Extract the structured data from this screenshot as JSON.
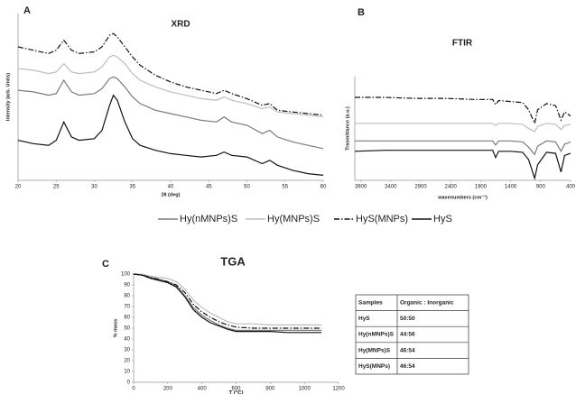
{
  "legend": [
    {
      "name": "Hy(nMNPs)S",
      "color": "#7a7a7a",
      "style": "solid"
    },
    {
      "name": "Hy(MNPs)S",
      "color": "#bdbdbd",
      "style": "solid"
    },
    {
      "name": "HyS(MNPs)",
      "color": "#111111",
      "style": "dashdot"
    },
    {
      "name": "HyS",
      "color": "#111111",
      "style": "solid"
    }
  ],
  "chart_data": [
    {
      "type": "line",
      "panel": "A",
      "title": "XRD",
      "xlabel": "2θ (deg)",
      "ylabel": "Intensity (arb. Units)",
      "x": [
        20,
        22,
        24,
        25,
        26,
        27,
        28,
        30,
        31,
        32,
        32.5,
        33,
        34,
        35,
        36,
        38,
        40,
        42,
        44,
        46,
        47,
        48,
        50,
        52,
        53,
        54,
        56,
        58,
        60
      ],
      "xlim": [
        20,
        60
      ],
      "xticks": [
        20,
        25,
        30,
        35,
        40,
        45,
        50,
        55,
        60
      ],
      "ylim": [
        0,
        100
      ],
      "series": [
        {
          "values": [
            54,
            53,
            51,
            52,
            60,
            53,
            51,
            52,
            55,
            61,
            62,
            61,
            56,
            50,
            46,
            42,
            40,
            38,
            36,
            35,
            38,
            35,
            33,
            28,
            30,
            26,
            23,
            21,
            19
          ]
        },
        {
          "values": [
            67,
            66,
            64,
            65,
            70,
            65,
            64,
            65,
            68,
            74,
            75,
            74,
            70,
            64,
            60,
            56,
            53,
            51,
            49,
            48,
            50,
            48,
            46,
            43,
            44,
            41,
            40,
            39,
            38
          ]
        },
        {
          "values": [
            80,
            78,
            76,
            78,
            84,
            78,
            76,
            77,
            80,
            87,
            88,
            86,
            80,
            74,
            69,
            63,
            59,
            56,
            54,
            52,
            54,
            52,
            49,
            45,
            46,
            42,
            41,
            40,
            39
          ]
        },
        {
          "values": [
            24,
            22,
            21,
            24,
            35,
            26,
            24,
            25,
            30,
            45,
            51,
            48,
            35,
            25,
            21,
            18,
            16,
            15,
            14,
            15,
            17,
            15,
            14,
            10,
            12,
            9,
            6,
            4,
            3
          ]
        }
      ]
    },
    {
      "type": "line",
      "panel": "B",
      "title": "FTIR",
      "xlabel": "wavenumbers (cm⁻¹)",
      "ylabel": "Trasmittance (a.u.)",
      "x": [
        4000,
        3500,
        3000,
        2500,
        2000,
        1700,
        1650,
        1600,
        1400,
        1200,
        1100,
        1000,
        950,
        800,
        650,
        560,
        500,
        400
      ],
      "xlim": [
        4000,
        400
      ],
      "xticks": [
        3900,
        3400,
        2900,
        2400,
        1900,
        1400,
        900,
        400
      ],
      "ylim": [
        0,
        100
      ],
      "series": [
        {
          "values": [
            38,
            38,
            38,
            38,
            38,
            38,
            34,
            38,
            38,
            37,
            32,
            25,
            33,
            38,
            37,
            28,
            35,
            37
          ]
        },
        {
          "values": [
            55,
            55,
            55,
            55,
            55,
            55,
            53,
            55,
            55,
            54,
            50,
            47,
            52,
            55,
            54,
            49,
            53,
            54
          ]
        },
        {
          "values": [
            80,
            80,
            79,
            79,
            78,
            78,
            73,
            77,
            76,
            75,
            68,
            55,
            68,
            74,
            72,
            58,
            66,
            62
          ]
        },
        {
          "values": [
            28,
            29,
            29,
            29,
            29,
            29,
            22,
            28,
            28,
            27,
            20,
            2,
            15,
            27,
            26,
            8,
            24,
            26
          ]
        }
      ]
    },
    {
      "type": "line",
      "panel": "C",
      "title": "TGA",
      "xlabel": "T (°C)",
      "ylabel": "% mass",
      "x": [
        0,
        50,
        100,
        150,
        200,
        250,
        300,
        350,
        400,
        450,
        500,
        550,
        600,
        700,
        800,
        900,
        1000,
        1100
      ],
      "xlim": [
        0,
        1200
      ],
      "xticks": [
        0,
        200,
        400,
        600,
        800,
        1000,
        1200
      ],
      "ylim": [
        0,
        100
      ],
      "yticks": [
        0,
        10,
        20,
        30,
        40,
        50,
        60,
        70,
        80,
        90,
        100
      ],
      "series": [
        {
          "values": [
            100,
            99,
            97,
            95,
            93,
            89,
            80,
            69,
            62,
            57,
            53,
            50,
            48,
            48,
            48,
            48,
            48,
            48
          ]
        },
        {
          "values": [
            100,
            100,
            98,
            97,
            96,
            93,
            86,
            76,
            69,
            64,
            60,
            56,
            54,
            54,
            53,
            53,
            53,
            53
          ]
        },
        {
          "values": [
            100,
            99,
            97,
            95,
            93,
            90,
            83,
            72,
            65,
            60,
            56,
            53,
            51,
            50,
            50,
            50,
            50,
            50
          ]
        },
        {
          "values": [
            100,
            99,
            96,
            94,
            92,
            88,
            79,
            67,
            60,
            55,
            52,
            49,
            47,
            47,
            47,
            46,
            46,
            46
          ]
        }
      ]
    }
  ],
  "table": {
    "header": [
      "Samples",
      "Organic : Inorganic"
    ],
    "rows": [
      [
        "HyS",
        "50:50"
      ],
      [
        "Hy(nMNPs)S",
        "44:56"
      ],
      [
        "Hy(MNPs)S",
        "46:54"
      ],
      [
        "HyS(MNPs)",
        "46:54"
      ]
    ]
  }
}
